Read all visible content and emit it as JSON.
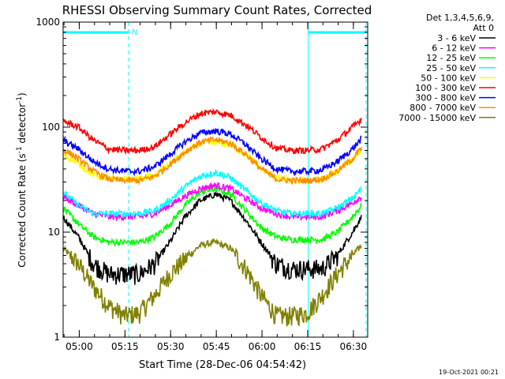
{
  "chart_data": {
    "type": "line",
    "title": "RHESSI Observing Summary Count Rates, Corrected",
    "xlabel": "Start Time (28-Dec-06 04:54:42)",
    "ylabel_parts": [
      "Corrected Count Rate (s",
      "-1",
      " detector",
      "-1",
      ")"
    ],
    "x_unit": "minutes after 04:54:42",
    "x_range_min": [
      0,
      100
    ],
    "y_scale": "log",
    "y_range": [
      1,
      1000
    ],
    "x_ticks": [
      {
        "min": 5.3,
        "label": "05:00"
      },
      {
        "min": 20.3,
        "label": "05:15"
      },
      {
        "min": 35.3,
        "label": "05:30"
      },
      {
        "min": 50.3,
        "label": "05:45"
      },
      {
        "min": 65.3,
        "label": "06:00"
      },
      {
        "min": 80.3,
        "label": "06:15"
      },
      {
        "min": 95.3,
        "label": "06:30"
      }
    ],
    "y_ticks": [
      {
        "value": 1,
        "label": "1"
      },
      {
        "value": 10,
        "label": "10"
      },
      {
        "value": 100,
        "label": "100"
      },
      {
        "value": 1000,
        "label": "1000"
      }
    ],
    "legend_header": [
      "Det 1,3,4,5,6,9,",
      "Att 0"
    ],
    "legend_position": "right",
    "series": [
      {
        "name": "3 - 6 keV",
        "color": "#000000",
        "x": [
          0,
          5,
          10,
          15,
          20,
          25,
          30,
          35,
          40,
          45,
          50,
          55,
          60,
          65,
          70,
          75,
          80,
          85,
          90,
          95,
          98
        ],
        "y": [
          14,
          9,
          5,
          4,
          4,
          4,
          5,
          8,
          14,
          20,
          23,
          20,
          13,
          8,
          5,
          4.5,
          4.5,
          4.5,
          6,
          10,
          14
        ]
      },
      {
        "name": "6 - 12 keV",
        "color": "#ff00ff",
        "x": [
          0,
          5,
          10,
          15,
          20,
          25,
          30,
          35,
          40,
          45,
          50,
          55,
          60,
          65,
          70,
          75,
          80,
          85,
          90,
          95,
          98
        ],
        "y": [
          22,
          18,
          15,
          14,
          14,
          14,
          15,
          18,
          22,
          26,
          28,
          26,
          21,
          17,
          15,
          14,
          14,
          14,
          16,
          19,
          22
        ]
      },
      {
        "name": "12 - 25 keV",
        "color": "#00ff00",
        "x": [
          0,
          5,
          10,
          15,
          20,
          25,
          30,
          35,
          40,
          45,
          50,
          55,
          60,
          65,
          70,
          75,
          80,
          85,
          90,
          95,
          98
        ],
        "y": [
          17,
          12,
          9,
          8,
          8,
          8,
          9,
          12,
          18,
          24,
          26,
          23,
          16,
          11,
          9,
          8.5,
          8.5,
          8.5,
          10,
          14,
          18
        ]
      },
      {
        "name": "25 - 50 keV",
        "color": "#00ffff",
        "x": [
          0,
          5,
          10,
          15,
          20,
          25,
          30,
          35,
          40,
          45,
          50,
          55,
          60,
          65,
          70,
          75,
          80,
          85,
          90,
          95,
          98
        ],
        "y": [
          24,
          18,
          15,
          15,
          15,
          15,
          16,
          20,
          27,
          34,
          37,
          33,
          25,
          19,
          16,
          15,
          15,
          15,
          17,
          21,
          26
        ]
      },
      {
        "name": "50 - 100 keV",
        "color": "#ffff00",
        "x": [
          0,
          5,
          10,
          15,
          20,
          25,
          30,
          35,
          40,
          45,
          50,
          55,
          60,
          65,
          70,
          75,
          80,
          85,
          90,
          95,
          98
        ],
        "y": [
          55,
          45,
          35,
          32,
          32,
          32,
          35,
          45,
          58,
          70,
          72,
          68,
          55,
          40,
          33,
          31,
          31,
          32,
          38,
          50,
          60
        ]
      },
      {
        "name": "100 - 300 keV",
        "color": "#ff0000",
        "x": [
          0,
          5,
          10,
          15,
          20,
          25,
          30,
          35,
          40,
          45,
          50,
          55,
          60,
          65,
          70,
          75,
          80,
          85,
          90,
          95,
          98
        ],
        "y": [
          115,
          100,
          75,
          62,
          60,
          60,
          65,
          85,
          110,
          135,
          140,
          130,
          105,
          80,
          63,
          60,
          60,
          62,
          75,
          100,
          120
        ]
      },
      {
        "name": "300 - 800 keV",
        "color": "#0000ff",
        "x": [
          0,
          5,
          10,
          15,
          20,
          25,
          30,
          35,
          40,
          45,
          50,
          55,
          60,
          65,
          70,
          75,
          80,
          85,
          90,
          95,
          98
        ],
        "y": [
          75,
          62,
          47,
          40,
          38,
          38,
          42,
          55,
          72,
          88,
          92,
          86,
          68,
          50,
          40,
          38,
          38,
          39,
          47,
          62,
          78
        ]
      },
      {
        "name": "800 - 7000 keV",
        "color": "#ff8c00",
        "x": [
          0,
          5,
          10,
          15,
          20,
          25,
          30,
          35,
          40,
          45,
          50,
          55,
          60,
          65,
          70,
          75,
          80,
          85,
          90,
          95,
          98
        ],
        "y": [
          62,
          50,
          38,
          32,
          31,
          31,
          34,
          44,
          58,
          72,
          76,
          70,
          55,
          40,
          32,
          31,
          31,
          32,
          38,
          50,
          63
        ]
      },
      {
        "name": "7000 - 15000 keV",
        "color": "#808000",
        "x": [
          0,
          5,
          10,
          15,
          20,
          25,
          30,
          35,
          40,
          45,
          50,
          55,
          60,
          65,
          70,
          75,
          80,
          85,
          90,
          95,
          98
        ],
        "y": [
          7,
          5,
          3,
          2,
          1.6,
          1.7,
          2.5,
          4,
          5.5,
          7.5,
          8,
          7,
          4.5,
          2.5,
          1.6,
          1.6,
          1.7,
          2.5,
          4,
          6,
          7.5
        ]
      }
    ],
    "annotations": {
      "flag_label": "N",
      "flag_spans_min": [
        [
          0,
          21.5
        ],
        [
          80.5,
          99.5
        ]
      ],
      "dashed_lines_min": [
        21.5,
        99.5
      ],
      "solid_lines_min": [
        0,
        80.5
      ]
    }
  },
  "footer_date": "19-Oct-2021 00:21"
}
